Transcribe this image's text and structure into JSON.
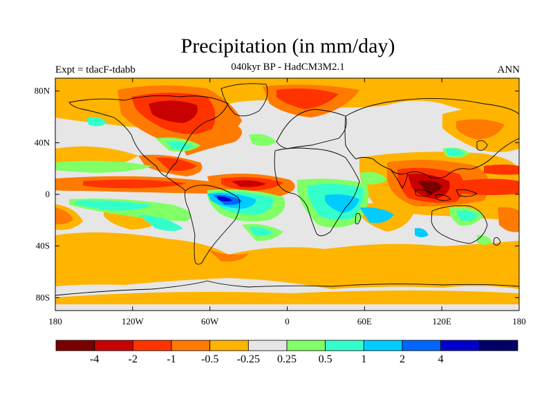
{
  "title": "Precipitation (in mm/day)",
  "subtitle": "040kyr BP - HadCM3M2.1",
  "left_label": "Expt = tdacF-tdabb",
  "right_label": "ANN",
  "map": {
    "lon_range": [
      -180,
      180
    ],
    "lat_range": [
      -90,
      90
    ],
    "background_color": "#e6e6e6",
    "x_ticks": [
      "180",
      "120W",
      "60W",
      "0",
      "60E",
      "120E",
      "180"
    ],
    "y_ticks": [
      "80N",
      "40N",
      "0",
      "40S",
      "80S"
    ]
  },
  "colorbar": {
    "colors": [
      "#7a0000",
      "#c80000",
      "#ff3300",
      "#ff7a00",
      "#ffb400",
      "#e6e6e6",
      "#80ff66",
      "#33ffcc",
      "#00ccff",
      "#0066ff",
      "#0000cc",
      "#000066"
    ],
    "labels": [
      "-4",
      "-2",
      "-1",
      "-0.5",
      "-0.25",
      "0.25",
      "0.5",
      "1",
      "2",
      "4"
    ]
  }
}
